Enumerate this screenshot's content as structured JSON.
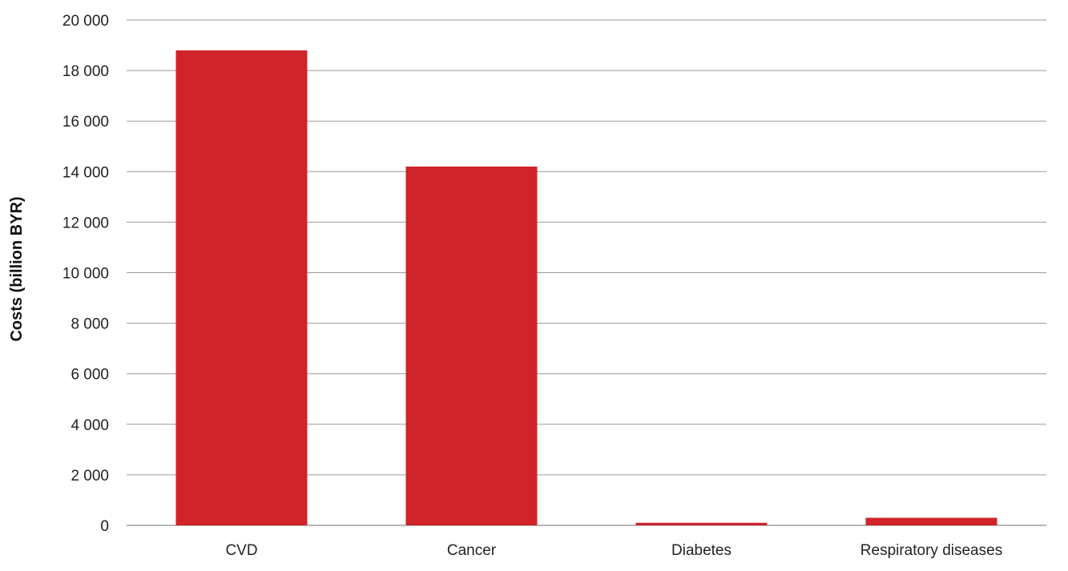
{
  "chart_data": {
    "type": "bar",
    "title": "",
    "xlabel": "",
    "ylabel": "Costs (billion BYR)",
    "categories": [
      "CVD",
      "Cancer",
      "Diabetes",
      "Respiratory diseases"
    ],
    "values": [
      18800,
      14200,
      100,
      300
    ],
    "ylim": [
      0,
      20000
    ],
    "yticks": [
      0,
      2000,
      4000,
      6000,
      8000,
      10000,
      12000,
      14000,
      16000,
      18000,
      20000
    ],
    "ytick_labels": [
      "0",
      "2 000",
      "4 000",
      "6 000",
      "8 000",
      "10 000",
      "12 000",
      "14 000",
      "16 000",
      "18 000",
      "20 000"
    ],
    "grid": true,
    "legend": "none",
    "bar_color": "#d0232a"
  }
}
